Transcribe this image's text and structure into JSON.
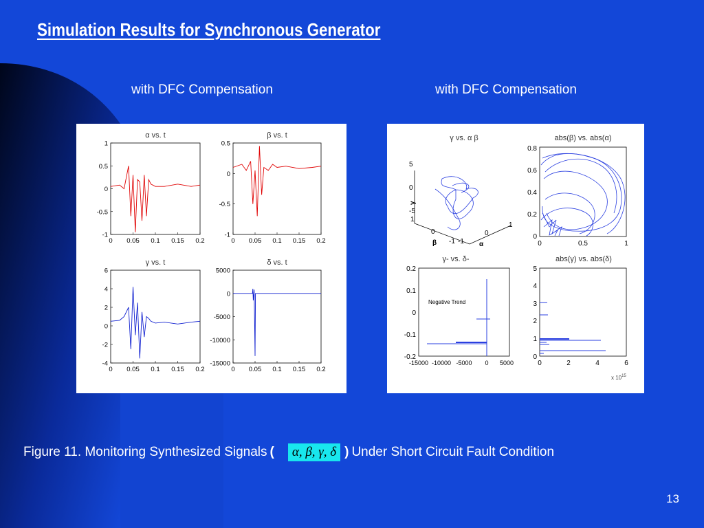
{
  "slide": {
    "title": "Simulation Results for Synchronous Generator",
    "subtitle_left": "with DFC Compensation",
    "subtitle_right": "with DFC Compensation",
    "caption_prefix": "Figure 11. Monitoring Synthesized Signals",
    "caption_open": "(",
    "caption_symbols": "α, β, γ, δ",
    "caption_close": ")",
    "caption_suffix": "Under Short Circuit Fault Condition",
    "page_number": "13",
    "colors": {
      "background": "#1347d8",
      "accent_box": "#18e6ee",
      "red_trace": "#e00000",
      "blue_trace": "#1020d0"
    }
  },
  "chart_data": [
    {
      "type": "line",
      "title": "α vs. t",
      "color": "red",
      "xlim": [
        0,
        0.2
      ],
      "ylim": [
        -1,
        1
      ],
      "xticks": [
        "0",
        "0.05",
        "0.1",
        "0.15",
        "0.2"
      ],
      "yticks": [
        "1",
        "0.5",
        "0",
        "-0.5",
        "-1"
      ],
      "series": [
        {
          "x": [
            0,
            0.02,
            0.03,
            0.04,
            0.045,
            0.05,
            0.055,
            0.06,
            0.065,
            0.07,
            0.075,
            0.08,
            0.085,
            0.09,
            0.1,
            0.12,
            0.15,
            0.18,
            0.2
          ],
          "y": [
            0.05,
            0.08,
            0.0,
            0.5,
            -0.6,
            0.3,
            -0.95,
            0.2,
            0.15,
            -0.7,
            0.3,
            -0.6,
            0.2,
            0.1,
            0.05,
            0.05,
            0.1,
            0.05,
            0.08
          ]
        }
      ]
    },
    {
      "type": "line",
      "title": "β vs. t",
      "color": "red",
      "xlim": [
        0,
        0.2
      ],
      "ylim": [
        -1,
        0.5
      ],
      "xticks": [
        "0",
        "0.05",
        "0.1",
        "0.15",
        "0.2"
      ],
      "yticks": [
        "0.5",
        "0",
        "-0.5",
        "-1"
      ],
      "series": [
        {
          "x": [
            0,
            0.02,
            0.03,
            0.04,
            0.045,
            0.05,
            0.055,
            0.06,
            0.065,
            0.07,
            0.08,
            0.09,
            0.1,
            0.12,
            0.15,
            0.18,
            0.2
          ],
          "y": [
            0.1,
            0.15,
            0.05,
            0.2,
            -0.5,
            0.05,
            -0.7,
            0.45,
            -0.35,
            0.1,
            0.05,
            0.15,
            0.1,
            0.12,
            0.08,
            0.1,
            0.12
          ]
        }
      ]
    },
    {
      "type": "line",
      "title": "γ vs. t",
      "color": "blue",
      "xlim": [
        0,
        0.2
      ],
      "ylim": [
        -4,
        6
      ],
      "xticks": [
        "0",
        "0.05",
        "0.1",
        "0.15",
        "0.2"
      ],
      "yticks": [
        "6",
        "4",
        "2",
        "0",
        "-2",
        "-4"
      ],
      "series": [
        {
          "x": [
            0,
            0.02,
            0.03,
            0.04,
            0.045,
            0.05,
            0.055,
            0.06,
            0.065,
            0.07,
            0.075,
            0.08,
            0.085,
            0.09,
            0.1,
            0.12,
            0.15,
            0.18,
            0.2
          ],
          "y": [
            0.5,
            0.6,
            1.0,
            2.0,
            -2.5,
            4.2,
            -1.0,
            2.5,
            -3.5,
            1.5,
            -1.2,
            1.0,
            0.8,
            0.5,
            0.3,
            0.4,
            0.2,
            0.4,
            0.5
          ]
        }
      ]
    },
    {
      "type": "line",
      "title": "δ vs. t",
      "color": "blue",
      "xlim": [
        0,
        0.2
      ],
      "ylim": [
        -15000,
        5000
      ],
      "xticks": [
        "0",
        "0.05",
        "0.1",
        "0.15",
        "0.2"
      ],
      "yticks": [
        "5000",
        "0",
        "-5000",
        "-10000",
        "-15000"
      ],
      "series": [
        {
          "x": [
            0,
            0.044,
            0.045,
            0.046,
            0.048,
            0.05,
            0.051,
            0.052,
            0.2
          ],
          "y": [
            0,
            0,
            1000,
            -1500,
            800,
            -13500,
            0,
            0,
            0
          ]
        }
      ]
    },
    {
      "type": "line",
      "title": "γ vs. α β",
      "axis_labels": {
        "x": "α",
        "y": "β",
        "z": "γ"
      },
      "zticks": [
        "5",
        "0",
        "-5"
      ],
      "xticks": [
        "-1",
        "0",
        "1"
      ],
      "yticks": [
        "1",
        "0",
        "-1"
      ]
    },
    {
      "type": "line",
      "title": "abs(β) vs. abs(α)",
      "xlim": [
        0,
        1
      ],
      "ylim": [
        0,
        0.8
      ],
      "xticks": [
        "0",
        "0.5",
        "1"
      ],
      "yticks": [
        "0.8",
        "0.6",
        "0.4",
        "0.2",
        "0"
      ]
    },
    {
      "type": "line",
      "title": "γ- vs. δ-",
      "xlim": [
        -15000,
        5000
      ],
      "ylim": [
        -0.2,
        0.2
      ],
      "xticks": [
        "-15000",
        "-10000",
        "-5000",
        "0",
        "5000"
      ],
      "yticks": [
        "0.2",
        "0.1",
        "0",
        "-0.1",
        "-0.2"
      ],
      "annotation": "Negative Trend"
    },
    {
      "type": "bar",
      "title": "abs(γ) vs. abs(δ)",
      "xlim": [
        0,
        6
      ],
      "ylim": [
        0,
        5
      ],
      "xticks": [
        "0",
        "2",
        "4",
        "6"
      ],
      "yticks": [
        "5",
        "4",
        "3",
        "2",
        "1",
        "0"
      ],
      "x_multiplier": "x 10",
      "x_multiplier_exp": "15"
    }
  ]
}
